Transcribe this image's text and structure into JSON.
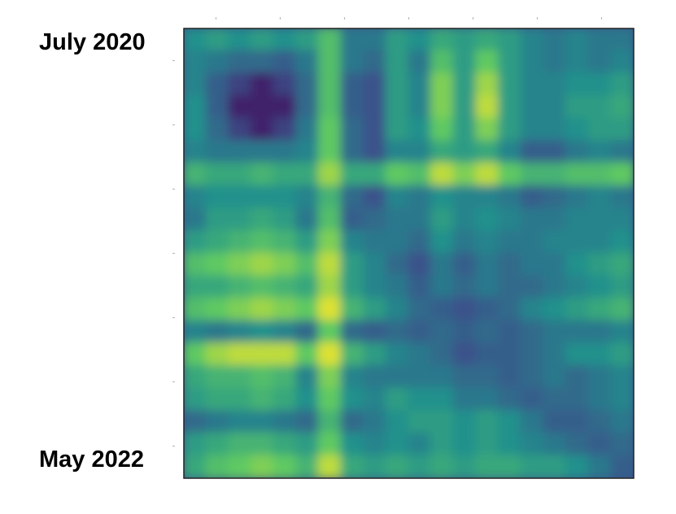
{
  "labels": {
    "top": "July 2020",
    "bottom": "May 2022"
  },
  "chart_data": {
    "type": "heatmap",
    "title": "",
    "xlabel": "",
    "ylabel": "",
    "row_labels": [
      "July 2020",
      "May 2022"
    ],
    "grid": false,
    "colormap": "viridis",
    "colors": [
      "#440154",
      "#3b528b",
      "#21918c",
      "#5ec962",
      "#fde725"
    ],
    "tick_count": 7,
    "matrix": [
      [
        0.5,
        0.55,
        0.5,
        0.55,
        0.5,
        0.55,
        0.7,
        0.4,
        0.4,
        0.55,
        0.5,
        0.6,
        0.55,
        0.6,
        0.55,
        0.45,
        0.4,
        0.45,
        0.4,
        0.4
      ],
      [
        0.45,
        0.4,
        0.35,
        0.35,
        0.3,
        0.4,
        0.7,
        0.4,
        0.35,
        0.55,
        0.4,
        0.7,
        0.55,
        0.75,
        0.55,
        0.45,
        0.4,
        0.45,
        0.4,
        0.45
      ],
      [
        0.45,
        0.3,
        0.2,
        0.1,
        0.2,
        0.35,
        0.7,
        0.3,
        0.25,
        0.55,
        0.45,
        0.8,
        0.55,
        0.85,
        0.55,
        0.45,
        0.45,
        0.5,
        0.5,
        0.55
      ],
      [
        0.5,
        0.3,
        0.1,
        0.1,
        0.1,
        0.35,
        0.7,
        0.3,
        0.25,
        0.55,
        0.45,
        0.8,
        0.55,
        0.9,
        0.55,
        0.45,
        0.45,
        0.55,
        0.55,
        0.6
      ],
      [
        0.5,
        0.35,
        0.2,
        0.1,
        0.2,
        0.4,
        0.75,
        0.35,
        0.25,
        0.55,
        0.5,
        0.75,
        0.55,
        0.8,
        0.55,
        0.45,
        0.45,
        0.5,
        0.55,
        0.55
      ],
      [
        0.45,
        0.4,
        0.4,
        0.4,
        0.4,
        0.45,
        0.75,
        0.35,
        0.25,
        0.45,
        0.45,
        0.6,
        0.55,
        0.6,
        0.45,
        0.3,
        0.3,
        0.4,
        0.45,
        0.4
      ],
      [
        0.65,
        0.6,
        0.6,
        0.65,
        0.6,
        0.6,
        0.85,
        0.6,
        0.6,
        0.75,
        0.7,
        0.9,
        0.8,
        0.9,
        0.75,
        0.65,
        0.65,
        0.7,
        0.7,
        0.75
      ],
      [
        0.45,
        0.5,
        0.5,
        0.5,
        0.5,
        0.45,
        0.65,
        0.35,
        0.25,
        0.45,
        0.4,
        0.5,
        0.45,
        0.45,
        0.4,
        0.3,
        0.35,
        0.4,
        0.45,
        0.4
      ],
      [
        0.4,
        0.55,
        0.55,
        0.6,
        0.55,
        0.4,
        0.7,
        0.3,
        0.35,
        0.4,
        0.4,
        0.55,
        0.45,
        0.5,
        0.45,
        0.4,
        0.4,
        0.45,
        0.45,
        0.45
      ],
      [
        0.55,
        0.6,
        0.65,
        0.7,
        0.65,
        0.55,
        0.8,
        0.45,
        0.4,
        0.4,
        0.35,
        0.5,
        0.4,
        0.45,
        0.4,
        0.4,
        0.45,
        0.45,
        0.45,
        0.5
      ],
      [
        0.7,
        0.75,
        0.8,
        0.85,
        0.8,
        0.7,
        0.9,
        0.55,
        0.45,
        0.35,
        0.25,
        0.4,
        0.3,
        0.4,
        0.35,
        0.4,
        0.4,
        0.5,
        0.55,
        0.6
      ],
      [
        0.6,
        0.6,
        0.65,
        0.7,
        0.65,
        0.6,
        0.85,
        0.55,
        0.45,
        0.4,
        0.3,
        0.4,
        0.35,
        0.4,
        0.35,
        0.35,
        0.4,
        0.45,
        0.5,
        0.55
      ],
      [
        0.7,
        0.75,
        0.8,
        0.85,
        0.8,
        0.75,
        0.95,
        0.65,
        0.55,
        0.45,
        0.35,
        0.3,
        0.25,
        0.3,
        0.35,
        0.45,
        0.5,
        0.55,
        0.6,
        0.65
      ],
      [
        0.45,
        0.4,
        0.45,
        0.5,
        0.45,
        0.35,
        0.75,
        0.35,
        0.3,
        0.35,
        0.3,
        0.35,
        0.3,
        0.35,
        0.3,
        0.35,
        0.4,
        0.4,
        0.4,
        0.45
      ],
      [
        0.75,
        0.85,
        0.9,
        0.9,
        0.9,
        0.75,
        0.95,
        0.65,
        0.55,
        0.45,
        0.4,
        0.35,
        0.25,
        0.3,
        0.3,
        0.35,
        0.4,
        0.5,
        0.5,
        0.55
      ],
      [
        0.6,
        0.65,
        0.65,
        0.7,
        0.65,
        0.45,
        0.8,
        0.45,
        0.4,
        0.4,
        0.4,
        0.4,
        0.35,
        0.35,
        0.3,
        0.35,
        0.4,
        0.35,
        0.4,
        0.45
      ],
      [
        0.55,
        0.6,
        0.6,
        0.65,
        0.6,
        0.5,
        0.75,
        0.5,
        0.45,
        0.55,
        0.5,
        0.5,
        0.4,
        0.4,
        0.35,
        0.3,
        0.35,
        0.35,
        0.4,
        0.45
      ],
      [
        0.35,
        0.4,
        0.45,
        0.45,
        0.4,
        0.35,
        0.65,
        0.35,
        0.4,
        0.5,
        0.55,
        0.55,
        0.5,
        0.55,
        0.5,
        0.4,
        0.3,
        0.3,
        0.35,
        0.4
      ],
      [
        0.55,
        0.6,
        0.65,
        0.65,
        0.6,
        0.55,
        0.75,
        0.5,
        0.45,
        0.5,
        0.45,
        0.55,
        0.5,
        0.55,
        0.5,
        0.45,
        0.4,
        0.35,
        0.3,
        0.35
      ],
      [
        0.6,
        0.7,
        0.75,
        0.8,
        0.75,
        0.65,
        0.9,
        0.6,
        0.55,
        0.6,
        0.55,
        0.6,
        0.55,
        0.6,
        0.6,
        0.55,
        0.55,
        0.5,
        0.4,
        0.3
      ]
    ]
  }
}
